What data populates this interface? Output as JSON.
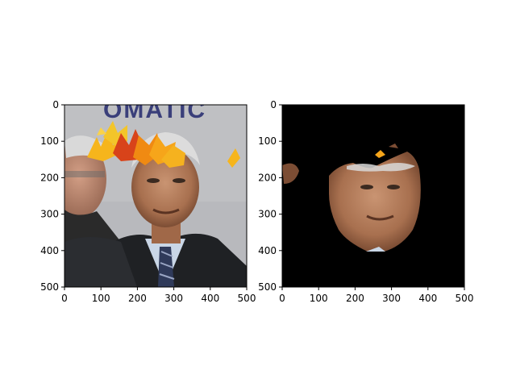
{
  "chart_data": [
    {
      "type": "image",
      "panel": "original-with-leaf-overlay",
      "xlim": [
        0,
        500
      ],
      "ylim": [
        500,
        0
      ],
      "xticks": [
        0,
        100,
        200,
        300,
        400,
        500
      ],
      "yticks": [
        0,
        100,
        200,
        300,
        400,
        500
      ],
      "xtick_labels": [
        "0",
        "100",
        "200",
        "300",
        "400",
        "500"
      ],
      "ytick_labels": [
        "0",
        "100",
        "200",
        "300",
        "400",
        "500"
      ],
      "banner_text": "OMATIC",
      "title": "",
      "xlabel": "",
      "ylabel": ""
    },
    {
      "type": "image",
      "panel": "segmentation-mask",
      "xlim": [
        0,
        500
      ],
      "ylim": [
        500,
        0
      ],
      "xticks": [
        0,
        100,
        200,
        300,
        400,
        500
      ],
      "yticks": [
        0,
        100,
        200,
        300,
        400,
        500
      ],
      "xtick_labels": [
        "0",
        "100",
        "200",
        "300",
        "400",
        "500"
      ],
      "ytick_labels": [
        "0",
        "100",
        "200",
        "300",
        "400",
        "500"
      ],
      "title": "",
      "xlabel": "",
      "ylabel": ""
    }
  ],
  "colors": {
    "background_wall": "#b8b9bd",
    "banner_text": "#3a3f7a",
    "mask_black": "#000000",
    "skin": "#b07a5c",
    "suit": "#1f2124",
    "shirt": "#c9d6e6",
    "leaf_orange": "#f08a12",
    "leaf_yellow": "#f6b51c",
    "leaf_red": "#d8431a"
  }
}
